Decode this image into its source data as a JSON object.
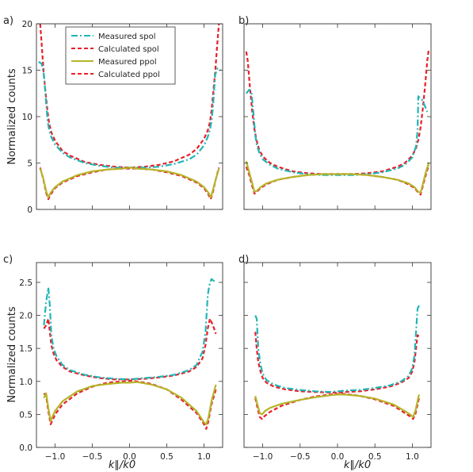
{
  "figure": {
    "ylabel_top": "Normalized counts",
    "ylabel_bottom": "Normalized counts",
    "xlabel": "k∥/k0"
  },
  "legend": [
    {
      "label": "Measured spol",
      "color": "#22b5b5",
      "style": "dashdot"
    },
    {
      "label": "Calculated spol",
      "color": "#e8202a",
      "style": "dashed"
    },
    {
      "label": "Measured ppol",
      "color": "#b5b52a",
      "style": "solid"
    },
    {
      "label": "Calculated ppol",
      "color": "#e8202a",
      "style": "dashed"
    }
  ],
  "colors": {
    "measured_spol": "#22b5b5",
    "calculated": "#e8202a",
    "measured_ppol": "#b5b52a"
  },
  "chart_data": [
    {
      "panel": "a)",
      "type": "line",
      "xlim": [
        -1.25,
        1.25
      ],
      "ylim": [
        0,
        20
      ],
      "yticks": [
        0,
        5,
        10,
        15,
        20
      ],
      "ytick_labels": [
        "0",
        "5",
        "10",
        "15",
        "20"
      ],
      "xticks": [],
      "xtick_labels": [],
      "series": [
        {
          "name": "Measured spol",
          "x": [
            -1.22,
            -1.18,
            -1.15,
            -1.12,
            -1.1,
            -1.08,
            -1.05,
            -1.0,
            -0.9,
            -0.8,
            -0.6,
            -0.4,
            -0.2,
            0.0,
            0.2,
            0.4,
            0.6,
            0.8,
            0.9,
            1.0,
            1.05,
            1.08,
            1.1,
            1.12,
            1.15,
            1.18,
            1.22
          ],
          "y": [
            15.9,
            15.7,
            14.5,
            11.5,
            9.5,
            8.6,
            7.8,
            7.0,
            6.1,
            5.6,
            5.0,
            4.7,
            4.5,
            4.5,
            4.5,
            4.6,
            4.9,
            5.4,
            5.9,
            6.9,
            7.8,
            8.6,
            9.5,
            11.0,
            14.5,
            15.2,
            15.0
          ]
        },
        {
          "name": "Calculated spol",
          "x": [
            -1.2,
            -1.18,
            -1.15,
            -1.12,
            -1.1,
            -1.08,
            -1.05,
            -1.0,
            -0.9,
            -0.8,
            -0.6,
            -0.4,
            -0.2,
            0.0,
            0.2,
            0.4,
            0.6,
            0.8,
            0.9,
            1.0,
            1.05,
            1.08,
            1.1,
            1.12,
            1.15,
            1.18,
            1.2
          ],
          "y": [
            20.0,
            17.8,
            14.4,
            12.0,
            10.5,
            9.3,
            8.3,
            7.4,
            6.3,
            5.8,
            5.1,
            4.8,
            4.6,
            4.5,
            4.6,
            4.8,
            5.2,
            5.9,
            6.5,
            7.6,
            8.5,
            9.4,
            10.6,
            12.3,
            14.8,
            18.0,
            20.0
          ]
        },
        {
          "name": "Measured ppol",
          "x": [
            -1.2,
            -1.16,
            -1.12,
            -1.09,
            -1.06,
            -1.0,
            -0.9,
            -0.7,
            -0.5,
            -0.3,
            -0.1,
            0.0,
            0.1,
            0.3,
            0.5,
            0.7,
            0.9,
            1.0,
            1.06,
            1.09,
            1.12,
            1.16,
            1.2
          ],
          "y": [
            4.4,
            3.4,
            2.0,
            1.3,
            1.8,
            2.4,
            3.0,
            3.7,
            4.1,
            4.3,
            4.4,
            4.5,
            4.4,
            4.3,
            4.1,
            3.7,
            3.0,
            2.4,
            1.8,
            1.3,
            2.1,
            3.3,
            4.4
          ]
        },
        {
          "name": "Calculated ppol",
          "x": [
            -1.2,
            -1.16,
            -1.12,
            -1.09,
            -1.06,
            -1.0,
            -0.9,
            -0.7,
            -0.5,
            -0.3,
            -0.1,
            0.0,
            0.1,
            0.3,
            0.5,
            0.7,
            0.9,
            1.0,
            1.06,
            1.09,
            1.12,
            1.16,
            1.2
          ],
          "y": [
            4.5,
            3.3,
            1.8,
            1.1,
            1.6,
            2.3,
            2.9,
            3.6,
            4.0,
            4.3,
            4.4,
            4.4,
            4.4,
            4.3,
            4.0,
            3.6,
            2.9,
            2.3,
            1.6,
            1.1,
            1.9,
            3.3,
            4.5
          ]
        }
      ]
    },
    {
      "panel": "b)",
      "type": "line",
      "xlim": [
        -1.25,
        1.25
      ],
      "ylim": [
        0,
        20
      ],
      "yticks": [
        0,
        5,
        10,
        15,
        20
      ],
      "ytick_labels": [],
      "xticks": [],
      "xtick_labels": [],
      "series": [
        {
          "name": "Measured spol",
          "x": [
            -1.22,
            -1.18,
            -1.15,
            -1.12,
            -1.1,
            -1.08,
            -1.05,
            -1.0,
            -0.9,
            -0.8,
            -0.6,
            -0.4,
            -0.2,
            0.0,
            0.2,
            0.4,
            0.6,
            0.8,
            0.9,
            1.0,
            1.05,
            1.07,
            1.08,
            1.1,
            1.13,
            1.16,
            1.2
          ],
          "y": [
            12.5,
            12.9,
            12.6,
            10.0,
            8.0,
            7.0,
            6.2,
            5.4,
            4.8,
            4.4,
            4.0,
            3.8,
            3.7,
            3.7,
            3.7,
            3.8,
            4.0,
            4.4,
            4.8,
            5.6,
            6.8,
            8.5,
            12.2,
            12.0,
            11.8,
            11.3,
            10.5
          ]
        },
        {
          "name": "Calculated spol",
          "x": [
            -1.22,
            -1.2,
            -1.17,
            -1.14,
            -1.11,
            -1.08,
            -1.05,
            -1.0,
            -0.9,
            -0.8,
            -0.6,
            -0.4,
            -0.2,
            0.0,
            0.2,
            0.4,
            0.6,
            0.8,
            0.9,
            1.0,
            1.05,
            1.08,
            1.11,
            1.14,
            1.17,
            1.2,
            1.22
          ],
          "y": [
            17.0,
            16.0,
            13.0,
            10.5,
            8.6,
            7.4,
            6.5,
            5.7,
            5.0,
            4.6,
            4.1,
            3.9,
            3.8,
            3.8,
            3.8,
            3.9,
            4.1,
            4.6,
            5.0,
            5.8,
            6.6,
            7.5,
            8.8,
            10.8,
            13.2,
            16.0,
            17.3
          ]
        },
        {
          "name": "Measured ppol",
          "x": [
            -1.22,
            -1.18,
            -1.14,
            -1.11,
            -1.08,
            -1.03,
            -0.95,
            -0.8,
            -0.6,
            -0.4,
            -0.2,
            0.0,
            0.2,
            0.4,
            0.6,
            0.8,
            0.95,
            1.03,
            1.08,
            1.11,
            1.14,
            1.18,
            1.22
          ],
          "y": [
            5.2,
            4.0,
            2.8,
            1.9,
            2.0,
            2.4,
            2.8,
            3.2,
            3.5,
            3.7,
            3.8,
            3.8,
            3.8,
            3.7,
            3.5,
            3.2,
            2.8,
            2.4,
            1.9,
            1.8,
            2.7,
            4.0,
            5.0
          ]
        },
        {
          "name": "Calculated ppol",
          "x": [
            -1.22,
            -1.18,
            -1.14,
            -1.11,
            -1.08,
            -1.03,
            -0.95,
            -0.8,
            -0.6,
            -0.4,
            -0.2,
            0.0,
            0.2,
            0.4,
            0.6,
            0.8,
            0.95,
            1.03,
            1.08,
            1.11,
            1.14,
            1.18,
            1.22
          ],
          "y": [
            4.6,
            3.7,
            2.5,
            1.7,
            1.9,
            2.3,
            2.7,
            3.2,
            3.5,
            3.7,
            3.8,
            3.8,
            3.8,
            3.7,
            3.5,
            3.2,
            2.7,
            2.3,
            1.8,
            1.6,
            2.5,
            3.7,
            4.8
          ]
        }
      ]
    },
    {
      "panel": "c)",
      "type": "line",
      "xlim": [
        -1.25,
        1.25
      ],
      "ylim": [
        0,
        2.8
      ],
      "yticks": [
        0,
        0.5,
        1.0,
        1.5,
        2.0,
        2.5
      ],
      "ytick_labels": [
        "0.0",
        "0.5",
        "1.0",
        "1.5",
        "2.0",
        "2.5"
      ],
      "xticks": [
        -1.0,
        -0.5,
        0.0,
        0.5,
        1.0
      ],
      "xtick_labels": [
        "−1.0",
        "−0.5",
        "0.0",
        "0.5",
        "1.0"
      ],
      "series": [
        {
          "name": "Measured spol",
          "x": [
            -1.15,
            -1.12,
            -1.09,
            -1.07,
            -1.05,
            -1.02,
            -0.98,
            -0.9,
            -0.8,
            -0.6,
            -0.4,
            -0.2,
            0.0,
            0.2,
            0.4,
            0.6,
            0.8,
            0.9,
            0.98,
            1.02,
            1.05,
            1.07,
            1.1,
            1.16
          ],
          "y": [
            1.85,
            2.2,
            2.42,
            2.15,
            1.7,
            1.5,
            1.38,
            1.25,
            1.17,
            1.1,
            1.06,
            1.04,
            1.03,
            1.05,
            1.07,
            1.1,
            1.17,
            1.25,
            1.45,
            1.75,
            2.3,
            2.45,
            2.55,
            2.5
          ]
        },
        {
          "name": "Calculated spol",
          "x": [
            -1.15,
            -1.12,
            -1.09,
            -1.07,
            -1.05,
            -1.02,
            -0.98,
            -0.9,
            -0.8,
            -0.6,
            -0.4,
            -0.2,
            0.0,
            0.2,
            0.4,
            0.6,
            0.8,
            0.9,
            0.98,
            1.02,
            1.05,
            1.08,
            1.12,
            1.16
          ],
          "y": [
            1.8,
            1.85,
            1.95,
            1.75,
            1.55,
            1.42,
            1.32,
            1.22,
            1.15,
            1.09,
            1.05,
            1.03,
            1.03,
            1.04,
            1.06,
            1.09,
            1.15,
            1.22,
            1.35,
            1.55,
            1.8,
            1.95,
            1.85,
            1.72
          ]
        },
        {
          "name": "Measured ppol",
          "x": [
            -1.15,
            -1.12,
            -1.09,
            -1.06,
            -1.03,
            -1.0,
            -0.9,
            -0.7,
            -0.5,
            -0.3,
            -0.1,
            0.0,
            0.1,
            0.3,
            0.5,
            0.7,
            0.9,
            1.0,
            1.03,
            1.06,
            1.1,
            1.16
          ],
          "y": [
            0.75,
            0.82,
            0.6,
            0.4,
            0.48,
            0.55,
            0.7,
            0.85,
            0.93,
            0.96,
            0.98,
            0.98,
            0.99,
            0.95,
            0.88,
            0.75,
            0.55,
            0.38,
            0.35,
            0.45,
            0.7,
            0.95
          ]
        },
        {
          "name": "Calculated ppol",
          "x": [
            -1.15,
            -1.12,
            -1.09,
            -1.06,
            -1.03,
            -1.0,
            -0.9,
            -0.7,
            -0.5,
            -0.3,
            -0.1,
            0.0,
            0.1,
            0.3,
            0.5,
            0.7,
            0.9,
            1.0,
            1.03,
            1.06,
            1.1,
            1.16
          ],
          "y": [
            0.82,
            0.78,
            0.55,
            0.35,
            0.42,
            0.5,
            0.65,
            0.82,
            0.92,
            0.98,
            1.0,
            1.01,
            1.0,
            0.96,
            0.88,
            0.72,
            0.52,
            0.35,
            0.28,
            0.4,
            0.65,
            0.88
          ]
        }
      ]
    },
    {
      "panel": "d)",
      "type": "line",
      "xlim": [
        -1.25,
        1.25
      ],
      "ylim": [
        0,
        2.8
      ],
      "yticks": [
        0,
        0.5,
        1.0,
        1.5,
        2.0,
        2.5
      ],
      "ytick_labels": [],
      "xticks": [
        -1.0,
        -0.5,
        0.0,
        0.5,
        1.0
      ],
      "xtick_labels": [
        "−1.0",
        "−0.5",
        "0.0",
        "0.5",
        "1.0"
      ],
      "series": [
        {
          "name": "Measured spol",
          "x": [
            -1.1,
            -1.08,
            -1.06,
            -1.03,
            -1.0,
            -0.95,
            -0.85,
            -0.7,
            -0.5,
            -0.3,
            -0.1,
            0.0,
            0.1,
            0.3,
            0.5,
            0.7,
            0.85,
            0.95,
            1.0,
            1.03,
            1.05,
            1.07,
            1.09
          ],
          "y": [
            2.0,
            1.95,
            1.5,
            1.25,
            1.12,
            1.02,
            0.95,
            0.9,
            0.87,
            0.85,
            0.84,
            0.85,
            0.86,
            0.87,
            0.9,
            0.94,
            1.0,
            1.08,
            1.2,
            1.4,
            1.75,
            2.1,
            2.15
          ]
        },
        {
          "name": "Calculated spol",
          "x": [
            -1.1,
            -1.08,
            -1.06,
            -1.03,
            -1.0,
            -0.95,
            -0.85,
            -0.7,
            -0.5,
            -0.3,
            -0.1,
            0.0,
            0.1,
            0.3,
            0.5,
            0.7,
            0.85,
            0.95,
            1.0,
            1.03,
            1.05,
            1.07,
            1.09
          ],
          "y": [
            1.75,
            1.5,
            1.3,
            1.15,
            1.05,
            0.98,
            0.92,
            0.88,
            0.85,
            0.84,
            0.83,
            0.83,
            0.84,
            0.85,
            0.88,
            0.92,
            0.98,
            1.05,
            1.15,
            1.3,
            1.5,
            1.7,
            1.68
          ]
        },
        {
          "name": "Measured ppol",
          "x": [
            -1.1,
            -1.07,
            -1.04,
            -1.01,
            -0.97,
            -0.9,
            -0.75,
            -0.5,
            -0.3,
            -0.1,
            0.0,
            0.1,
            0.3,
            0.5,
            0.75,
            0.9,
            0.97,
            1.01,
            1.04,
            1.07,
            1.09
          ],
          "y": [
            0.78,
            0.65,
            0.52,
            0.5,
            0.55,
            0.6,
            0.66,
            0.72,
            0.76,
            0.79,
            0.8,
            0.8,
            0.78,
            0.74,
            0.65,
            0.55,
            0.5,
            0.46,
            0.55,
            0.7,
            0.8
          ]
        },
        {
          "name": "Calculated ppol",
          "x": [
            -1.1,
            -1.07,
            -1.04,
            -1.01,
            -0.97,
            -0.9,
            -0.75,
            -0.5,
            -0.3,
            -0.1,
            0.0,
            0.1,
            0.3,
            0.5,
            0.75,
            0.9,
            0.97,
            1.01,
            1.04,
            1.07,
            1.09
          ],
          "y": [
            0.75,
            0.6,
            0.46,
            0.43,
            0.48,
            0.54,
            0.63,
            0.72,
            0.77,
            0.8,
            0.81,
            0.81,
            0.78,
            0.73,
            0.63,
            0.52,
            0.47,
            0.43,
            0.5,
            0.65,
            0.75
          ]
        }
      ]
    }
  ]
}
